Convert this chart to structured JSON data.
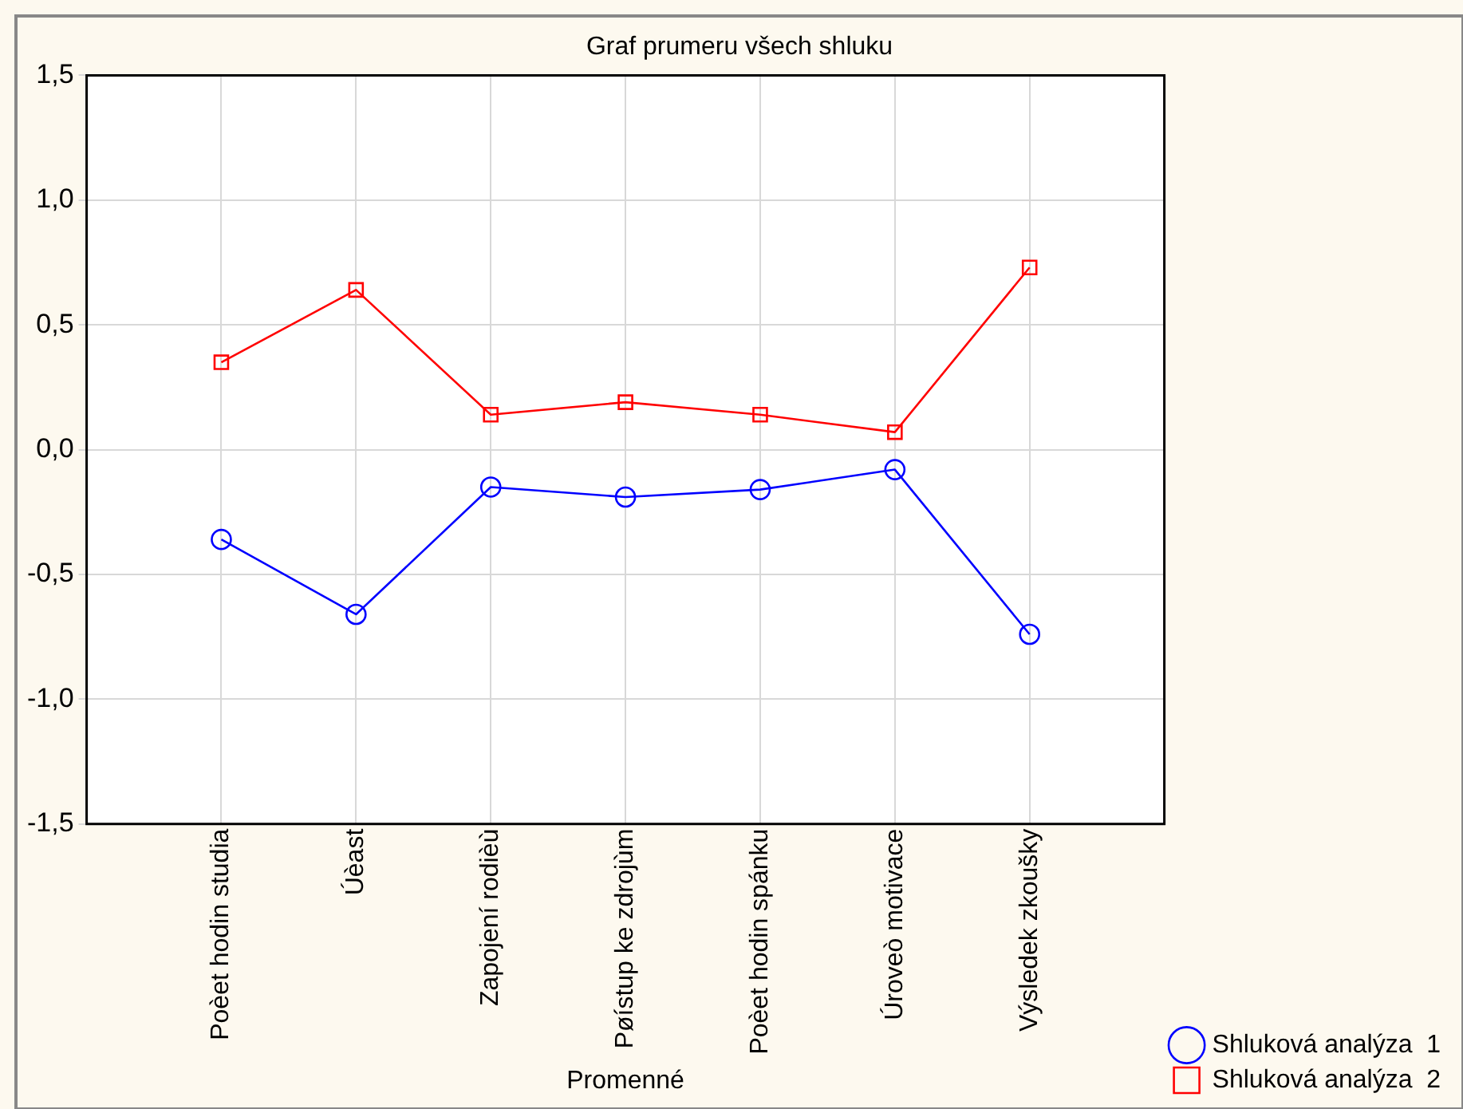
{
  "chart_data": {
    "type": "line",
    "title": "Graf prumeru všech shluku",
    "xlabel": "Promenné",
    "categories": [
      "Poèet hodin studia",
      "Úèast",
      "Zapojení rodièù",
      "Pøístup ke zdrojùm",
      "Poèet hodin spánku",
      "Úroveò motivace",
      "Výsledek zkoušky"
    ],
    "series": [
      {
        "name": "Shluková analýza  1",
        "color": "#0000ff",
        "marker": "circle",
        "values": [
          -0.36,
          -0.66,
          -0.15,
          -0.19,
          -0.16,
          -0.08,
          -0.74
        ]
      },
      {
        "name": "Shluková analýza  2",
        "color": "#ff0000",
        "marker": "square",
        "values": [
          0.35,
          0.64,
          0.14,
          0.19,
          0.14,
          0.07,
          0.73
        ]
      }
    ],
    "ylim": [
      -1.5,
      1.5
    ],
    "yticks": [
      {
        "value": -1.5,
        "label": "-1,5"
      },
      {
        "value": -1,
        "label": "-1,0"
      },
      {
        "value": -0.5,
        "label": "-0,5"
      },
      {
        "value": 0,
        "label": "0,0"
      },
      {
        "value": 0.5,
        "label": "0,5"
      },
      {
        "value": 1,
        "label": "1,0"
      },
      {
        "value": 1.5,
        "label": "1,5"
      }
    ],
    "grid": true,
    "legend": "bottom right",
    "line_style": "solid"
  }
}
